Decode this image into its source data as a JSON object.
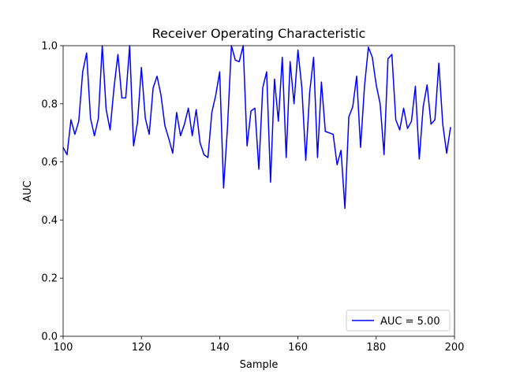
{
  "chart_data": {
    "type": "line",
    "title": "Receiver Operating Characteristic",
    "xlabel": "Sample",
    "ylabel": "AUC",
    "xlim": [
      100,
      200
    ],
    "ylim": [
      0.0,
      1.0
    ],
    "xticks": [
      "100",
      "120",
      "140",
      "160",
      "180",
      "200"
    ],
    "yticks": [
      "0.0",
      "0.2",
      "0.4",
      "0.6",
      "0.8",
      "1.0"
    ],
    "grid": false,
    "legend_position": "lower-right",
    "series": [
      {
        "name": "AUC = 5.00",
        "color": "#0000ff",
        "x": [
          100,
          101,
          102,
          103,
          104,
          105,
          106,
          107,
          108,
          109,
          110,
          111,
          112,
          113,
          114,
          115,
          116,
          117,
          118,
          119,
          120,
          121,
          122,
          123,
          124,
          125,
          126,
          127,
          128,
          129,
          130,
          131,
          132,
          133,
          134,
          135,
          136,
          137,
          138,
          139,
          140,
          141,
          142,
          143,
          144,
          145,
          146,
          147,
          148,
          149,
          150,
          151,
          152,
          153,
          154,
          155,
          156,
          157,
          158,
          159,
          160,
          161,
          162,
          163,
          164,
          165,
          166,
          167,
          168,
          169,
          170,
          171,
          172,
          173,
          174,
          175,
          176,
          177,
          178,
          179,
          180,
          181,
          182,
          183,
          184,
          185,
          186,
          187,
          188,
          189,
          190,
          191,
          192,
          193,
          194,
          195,
          196,
          197,
          198,
          199
        ],
        "y": [
          0.65,
          0.625,
          0.745,
          0.695,
          0.74,
          0.91,
          0.975,
          0.75,
          0.69,
          0.75,
          1.0,
          0.78,
          0.71,
          0.855,
          0.97,
          0.82,
          0.82,
          1.0,
          0.655,
          0.735,
          0.925,
          0.75,
          0.695,
          0.855,
          0.895,
          0.83,
          0.725,
          0.68,
          0.63,
          0.77,
          0.69,
          0.73,
          0.785,
          0.69,
          0.78,
          0.665,
          0.625,
          0.615,
          0.77,
          0.83,
          0.91,
          0.51,
          0.72,
          1.0,
          0.95,
          0.945,
          1.0,
          0.655,
          0.775,
          0.785,
          0.575,
          0.855,
          0.91,
          0.53,
          0.885,
          0.74,
          0.96,
          0.615,
          0.945,
          0.8,
          0.985,
          0.855,
          0.605,
          0.84,
          0.96,
          0.615,
          0.875,
          0.705,
          0.7,
          0.695,
          0.59,
          0.64,
          0.44,
          0.755,
          0.79,
          0.895,
          0.65,
          0.86,
          0.995,
          0.96,
          0.865,
          0.8,
          0.625,
          0.955,
          0.97,
          0.745,
          0.71,
          0.785,
          0.715,
          0.74,
          0.86,
          0.61,
          0.79,
          0.865,
          0.73,
          0.745,
          0.94,
          0.73,
          0.63,
          0.72
        ]
      }
    ]
  }
}
